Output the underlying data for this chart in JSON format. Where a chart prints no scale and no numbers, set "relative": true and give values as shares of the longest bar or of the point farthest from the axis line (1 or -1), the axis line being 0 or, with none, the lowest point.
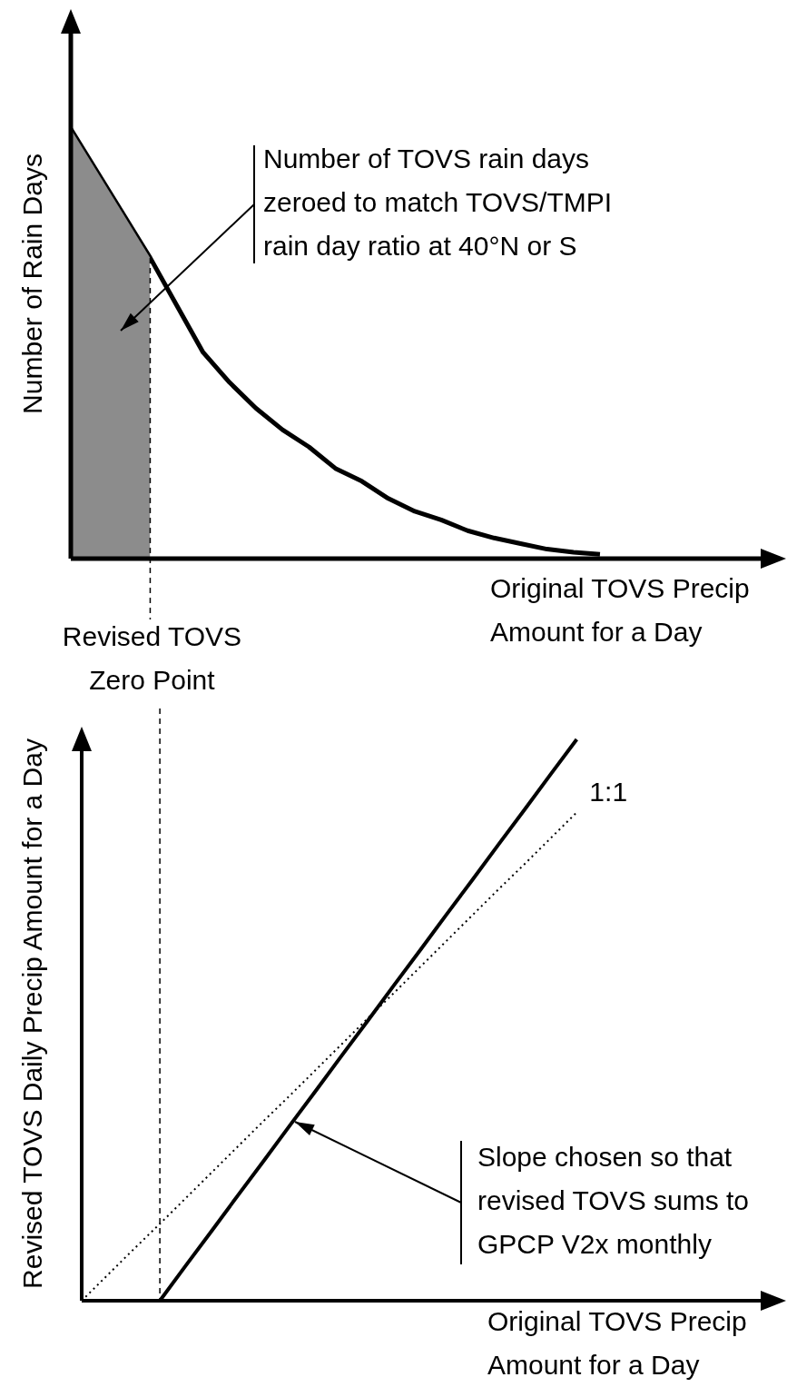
{
  "chart_data": [
    {
      "type": "line",
      "relative": true,
      "tick_labels": false,
      "marker": "none",
      "ylabel": "Number of Rain Days",
      "xlabel": "Original TOVS Precip Amount for a Day",
      "categories": [
        null,
        null,
        null,
        null,
        null,
        null,
        null,
        null,
        null,
        null,
        null,
        null,
        null,
        null,
        null,
        null,
        null,
        null,
        null,
        null,
        null,
        null,
        null,
        null,
        null,
        null,
        null,
        null
      ],
      "series": [
        {
          "type": "area",
          "color": "#8c8c8c",
          "values": [
            1,
            0.9,
            0.8,
            0.7,
            null,
            null,
            null,
            null,
            null,
            null,
            null,
            null,
            null,
            null,
            null,
            null,
            null,
            null,
            null,
            null,
            null,
            null,
            null,
            null,
            null,
            null,
            null,
            null
          ]
        },
        {
          "type": "line",
          "color": "#000000",
          "line_style": "solid",
          "values": [
            1,
            0.9,
            0.8,
            0.7,
            0.59,
            0.48,
            0.41,
            0.35,
            0.3,
            0.26,
            0.21,
            0.18,
            0.14,
            0.11,
            0.09,
            0.065,
            0.048,
            0.035,
            0.022,
            0.015,
            0.01,
            null,
            null,
            null,
            null,
            null,
            null,
            null
          ]
        }
      ],
      "annotations": [
        "Number of TOVS rain days zeroed to match TOVS/TMPI rain day ratio at 40°N or S",
        "Revised TOVS Zero Point"
      ]
    },
    {
      "type": "line",
      "relative": true,
      "tick_labels": false,
      "marker": "none",
      "ylabel": "Revised TOVS Daily Precip Amount for a Day",
      "xlabel": "Original TOVS Precip Amount for a Day",
      "categories": [
        null,
        null,
        null,
        null,
        null,
        null,
        null,
        null,
        null,
        null,
        null,
        null,
        null,
        null,
        null,
        null,
        null,
        null,
        null,
        null,
        null,
        null,
        null,
        null,
        null,
        null,
        null,
        null
      ],
      "series": [
        {
          "type": "line",
          "color": "#000000",
          "line_style": "solid",
          "values": [
            null,
            null,
            null,
            0,
            0.063,
            0.125,
            0.188,
            0.25,
            0.313,
            0.375,
            0.438,
            0.5,
            0.563,
            0.625,
            0.688,
            0.75,
            0.813,
            0.875,
            0.938,
            1,
            null,
            null,
            null,
            null,
            null,
            null,
            null,
            null
          ]
        },
        {
          "type": "line",
          "name": "1:1",
          "color": "#000000",
          "line_style": "dotted",
          "values": [
            0,
            0.046,
            0.092,
            0.137,
            0.183,
            0.229,
            0.275,
            0.321,
            0.366,
            0.412,
            0.458,
            0.504,
            0.549,
            0.595,
            0.641,
            0.687,
            0.733,
            0.778,
            0.824,
            0.87,
            null,
            null,
            null,
            null,
            null,
            null,
            null,
            null
          ]
        }
      ],
      "annotations": [
        "Slope chosen so that revised TOVS sums to GPCP V2x monthly"
      ]
    }
  ]
}
